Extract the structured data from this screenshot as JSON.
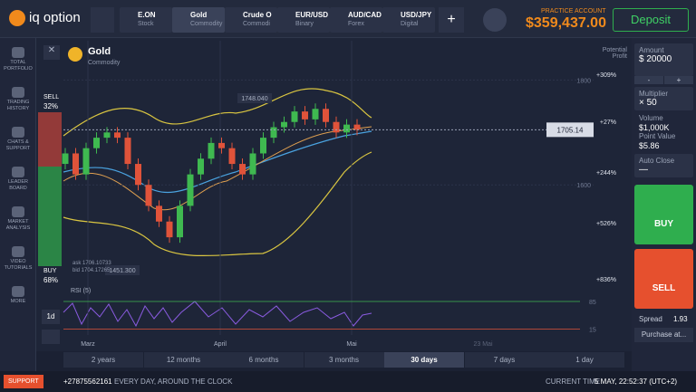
{
  "header": {
    "brand": "iq option",
    "tabs": [
      {
        "name": "E.ON",
        "sub": "Stock"
      },
      {
        "name": "Gold",
        "sub": "Commodity"
      },
      {
        "name": "Crude O",
        "sub": "Commodi"
      },
      {
        "name": "EUR/USD",
        "sub": "Binary"
      },
      {
        "name": "AUD/CAD",
        "sub": "Forex"
      },
      {
        "name": "USD/JPY",
        "sub": "Digital"
      }
    ],
    "account_label": "PRACTICE ACCOUNT",
    "balance": "$359,437.00",
    "deposit": "Deposit"
  },
  "sidebar": [
    "TOTAL PORTFOLIO",
    "TRADING HISTORY",
    "CHATS & SUPPORT",
    "LEADER BOARD",
    "MARKET ANALYSIS",
    "VIDEO TUTORIALS",
    "MORE"
  ],
  "asset": {
    "name": "Gold",
    "type": "Commodity"
  },
  "sentiment": {
    "sell": "SELL",
    "sell_pct": "32%",
    "buy": "BUY",
    "buy_pct": "68%"
  },
  "potential_profit": "Potential Profit",
  "profit_levels": [
    "+309%",
    "+27%",
    "+244%",
    "+526%",
    "+836%"
  ],
  "chart": {
    "type": "candlestick",
    "ylim": [
      1400,
      1875
    ],
    "yticks": [
      1800,
      1600
    ],
    "current_price": 1705.14,
    "high_label": "1748.040",
    "low_label": "1451.300",
    "ask": "ask 1706.10733",
    "bid": "bid 1704.17265",
    "candles": [
      [
        1640,
        1660
      ],
      [
        1660,
        1620
      ],
      [
        1620,
        1670
      ],
      [
        1670,
        1690
      ],
      [
        1690,
        1700
      ],
      [
        1700,
        1690
      ],
      [
        1690,
        1640
      ],
      [
        1640,
        1600
      ],
      [
        1600,
        1560
      ],
      [
        1560,
        1530
      ],
      [
        1530,
        1500
      ],
      [
        1500,
        1560
      ],
      [
        1560,
        1620
      ],
      [
        1620,
        1650
      ],
      [
        1650,
        1680
      ],
      [
        1680,
        1670
      ],
      [
        1670,
        1640
      ],
      [
        1640,
        1620
      ],
      [
        1620,
        1660
      ],
      [
        1660,
        1690
      ],
      [
        1690,
        1710
      ],
      [
        1710,
        1720
      ],
      [
        1720,
        1740
      ],
      [
        1740,
        1725
      ],
      [
        1725,
        1745
      ],
      [
        1745,
        1720
      ],
      [
        1720,
        1700
      ],
      [
        1700,
        1715
      ],
      [
        1715,
        1705
      ]
    ],
    "x_labels": [
      "Marz",
      "April",
      "Mai",
      "23 Mai"
    ]
  },
  "rsi": {
    "label": "RSI (5)",
    "ylim": [
      0,
      100
    ],
    "levels": [
      85,
      15
    ]
  },
  "periods": [
    "2 years",
    "12 months",
    "6 months",
    "3 months",
    "30 days",
    "7 days",
    "1 day"
  ],
  "active_period": 4,
  "trade": {
    "amount_label": "Amount",
    "amount": "$ 20000",
    "minus": "-",
    "plus": "+",
    "multiplier_label": "Multiplier",
    "multiplier": "× 50",
    "volume_label": "Volume",
    "volume": "$1,000K",
    "point_label": "Point Value",
    "point": "$5.86",
    "auto_close_label": "Auto Close",
    "auto_close": "—",
    "buy": "BUY",
    "sell": "SELL",
    "spread_label": "Spread",
    "spread": "1.93",
    "purchase": "Purchase at..."
  },
  "footer": {
    "support": "SUPPORT",
    "phone": "+27875562161",
    "hours": "EVERY DAY, AROUND THE CLOCK",
    "time_label": "CURRENT TIME",
    "time": "5 MAY, 22:52:37 (UTC+2)"
  }
}
